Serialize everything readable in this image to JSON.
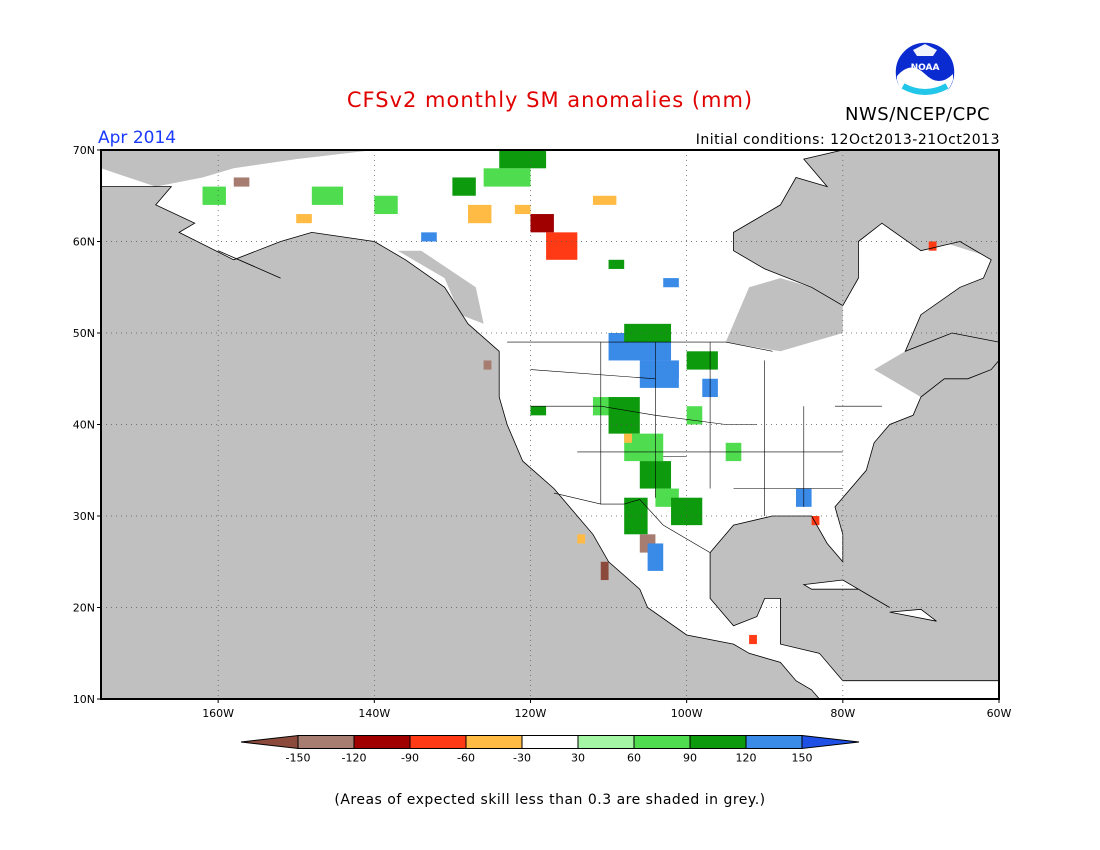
{
  "title": "CFSv2 monthly SM anomalies (mm)",
  "month": "Apr 2014",
  "initial_conditions": "Initial conditions: 12Oct2013-21Oct2013",
  "agency": "NWS/NCEP/CPC",
  "logo_text": "NOAA",
  "footnote": "(Areas of expected skill less than 0.3 are shaded in grey.)",
  "map": {
    "lon_range": [
      -175,
      -60
    ],
    "lat_range": [
      10,
      70
    ],
    "lat_ticks": [
      {
        "value": 70,
        "label": "70N"
      },
      {
        "value": 60,
        "label": "60N"
      },
      {
        "value": 50,
        "label": "50N"
      },
      {
        "value": 40,
        "label": "40N"
      },
      {
        "value": 30,
        "label": "30N"
      },
      {
        "value": 20,
        "label": "20N"
      },
      {
        "value": 10,
        "label": "10N"
      }
    ],
    "lon_ticks": [
      {
        "value": -160,
        "label": "160W"
      },
      {
        "value": -140,
        "label": "140W"
      },
      {
        "value": -120,
        "label": "120W"
      },
      {
        "value": -100,
        "label": "100W"
      },
      {
        "value": -80,
        "label": "80W"
      },
      {
        "value": -60,
        "label": "60W"
      }
    ],
    "colors": {
      "ocean": "#c0c0c0",
      "land": "#ffffff",
      "grey_skill": "#c0c0c0",
      "coast": "#000000"
    }
  },
  "legend": {
    "bins": [
      {
        "color": "#8b4a3c"
      },
      {
        "color": "#a77d72"
      },
      {
        "color": "#a00000"
      },
      {
        "color": "#ff3a14"
      },
      {
        "color": "#ffbb44"
      },
      {
        "color": "#ffffff"
      },
      {
        "color": "#a4f5a4"
      },
      {
        "color": "#4fdd4f"
      },
      {
        "color": "#0d9a0d"
      },
      {
        "color": "#3a8ae8"
      },
      {
        "color": "#1f50e6"
      }
    ],
    "labels": [
      "-150",
      "-120",
      "-90",
      "-60",
      "-30",
      "30",
      "60",
      "90",
      "120",
      "150"
    ]
  }
}
